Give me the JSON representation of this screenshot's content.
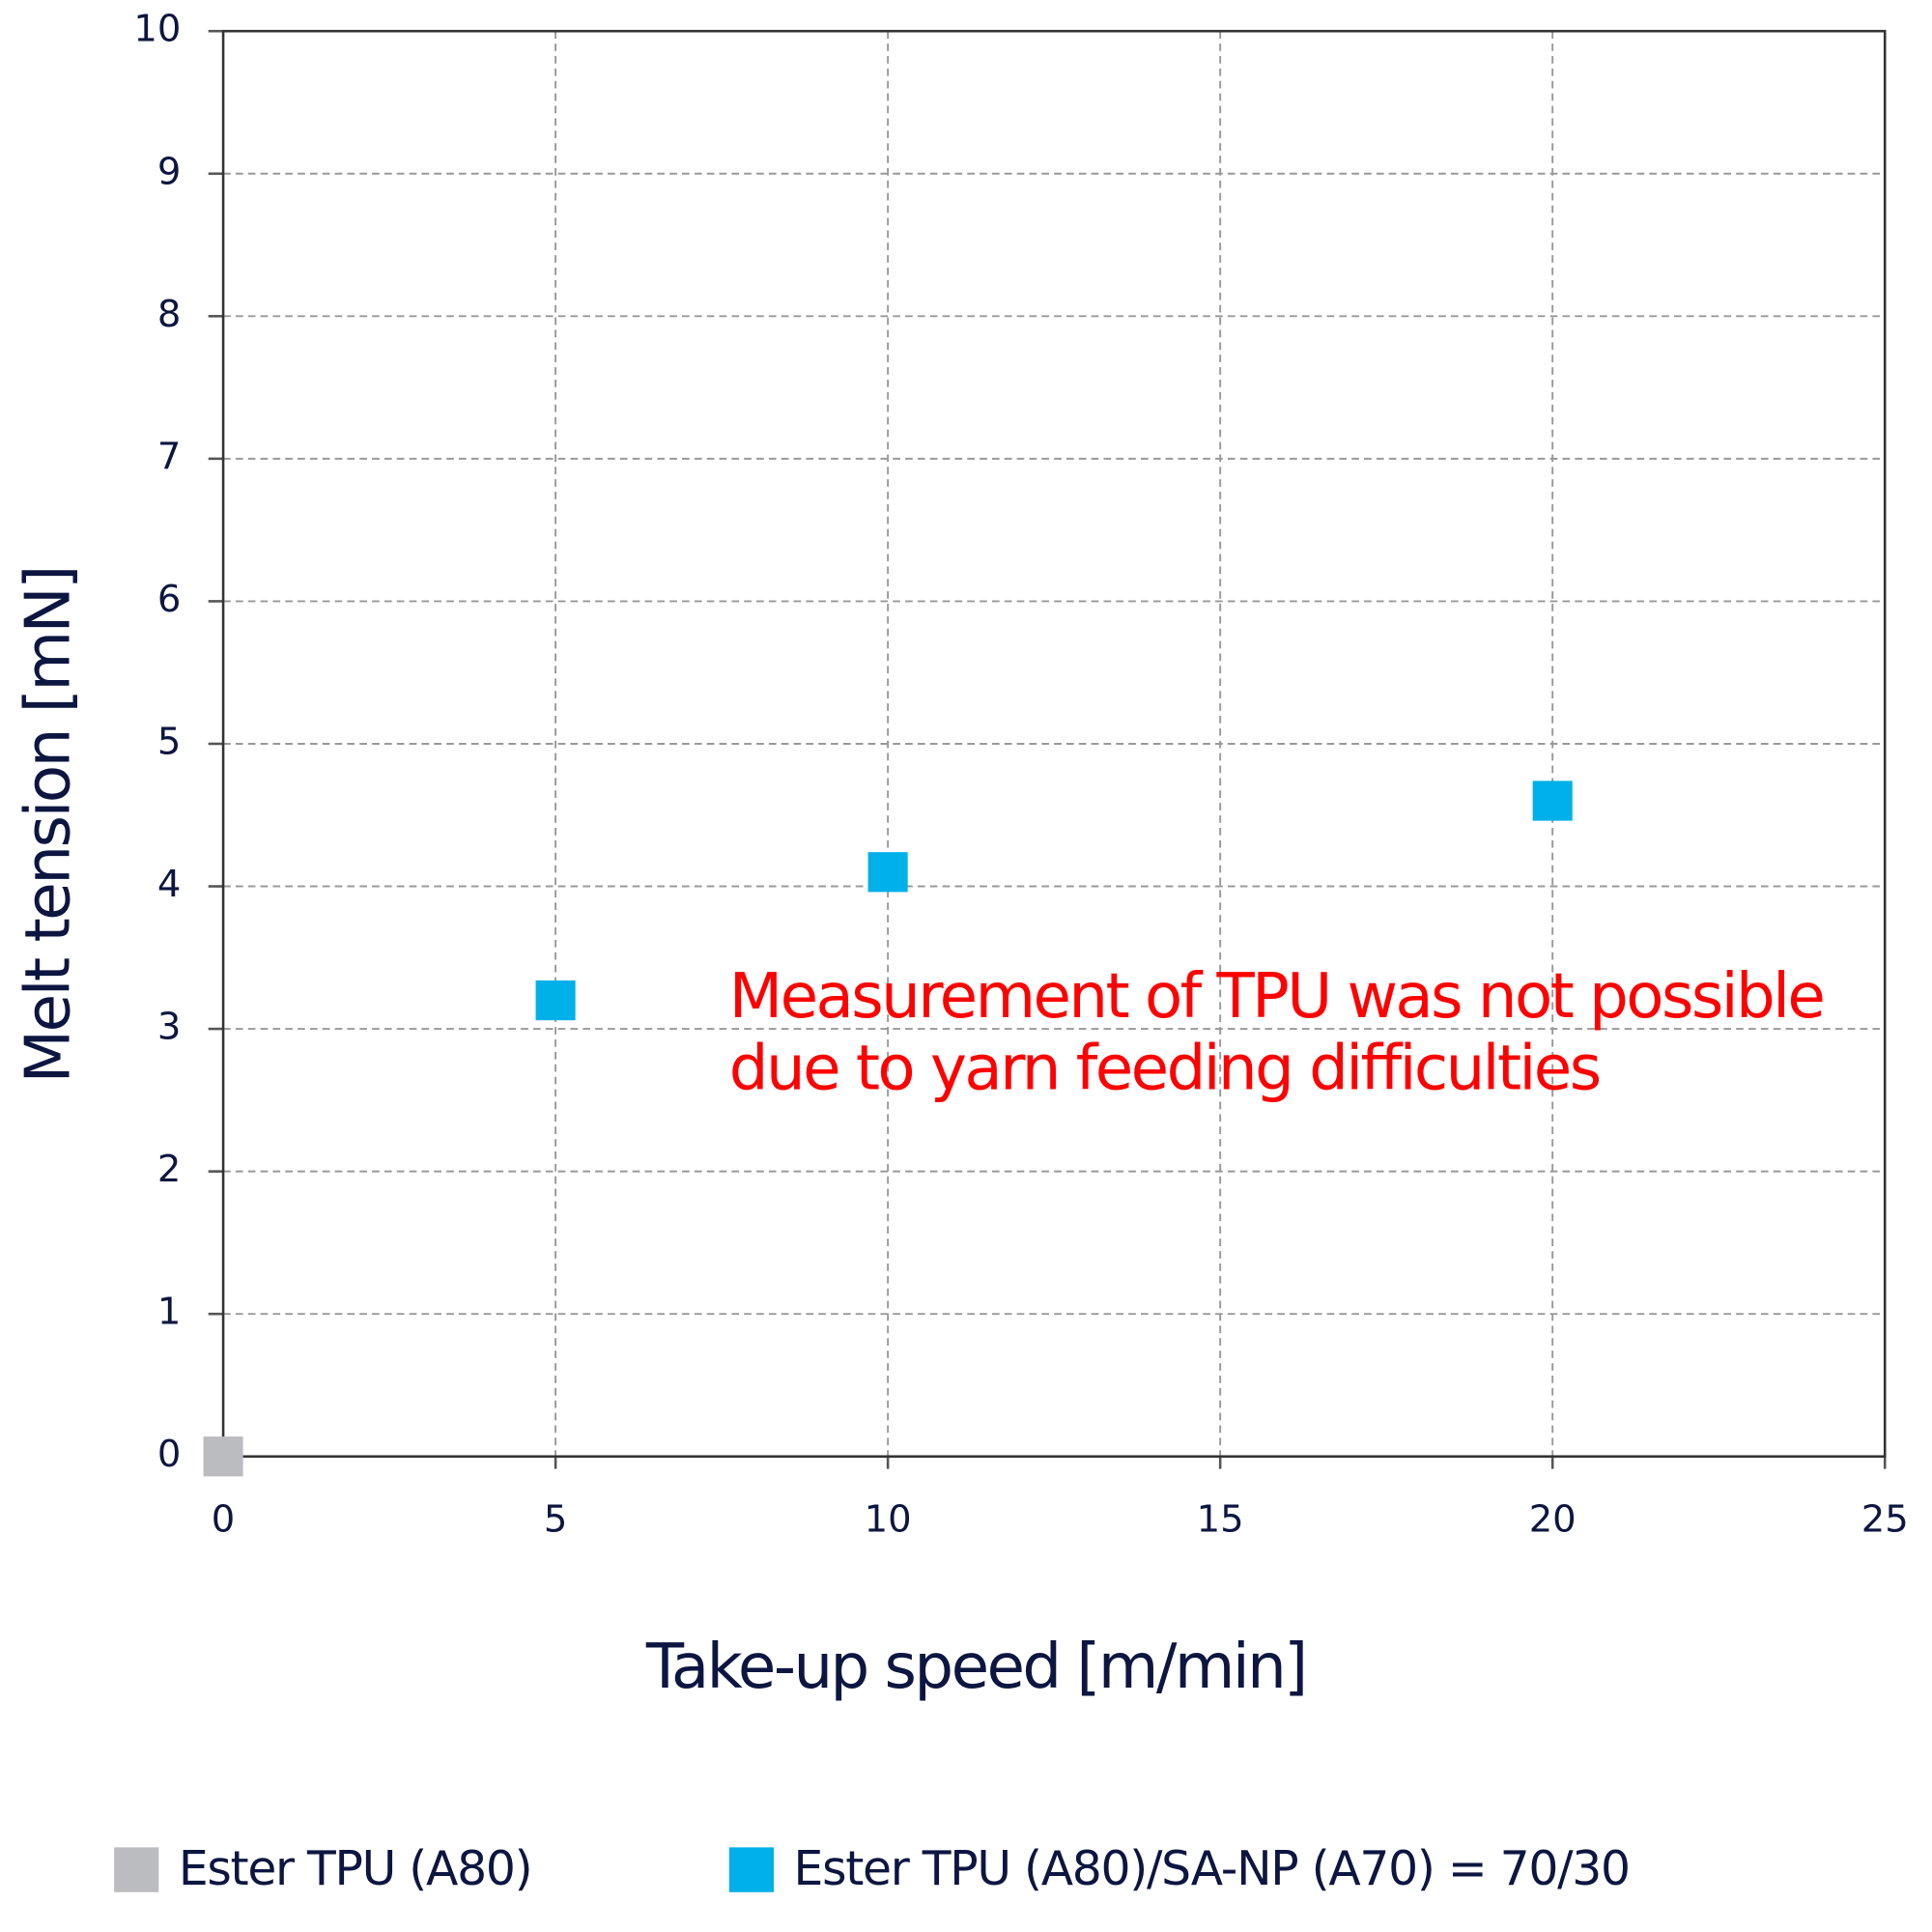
{
  "chart_data": {
    "type": "scatter",
    "x_label": "Take-up speed [m/min]",
    "y_label": "Melt tension [mN]",
    "annotation": [
      "Measurement of TPU was not possible",
      "due to yarn feeding difficulties"
    ],
    "xlim": [
      0,
      25
    ],
    "xticks": [
      0,
      5,
      10,
      15,
      20,
      25
    ],
    "ylim": [
      0,
      10
    ],
    "yticks": [
      0,
      1,
      2,
      3,
      4,
      5,
      6,
      7,
      8,
      9,
      10
    ],
    "grid": true,
    "legend": "bottom",
    "series": [
      {
        "name": "Ester TPU (A80)",
        "color": "#bbbcc0",
        "x": [
          0
        ],
        "values": [
          0
        ]
      },
      {
        "name": "Ester TPU (A80)/SA-NP (A70) = 70/30",
        "color": "#00b0e8",
        "x": [
          5,
          10,
          20
        ],
        "values": [
          3.2,
          4.1,
          4.6
        ]
      }
    ]
  }
}
